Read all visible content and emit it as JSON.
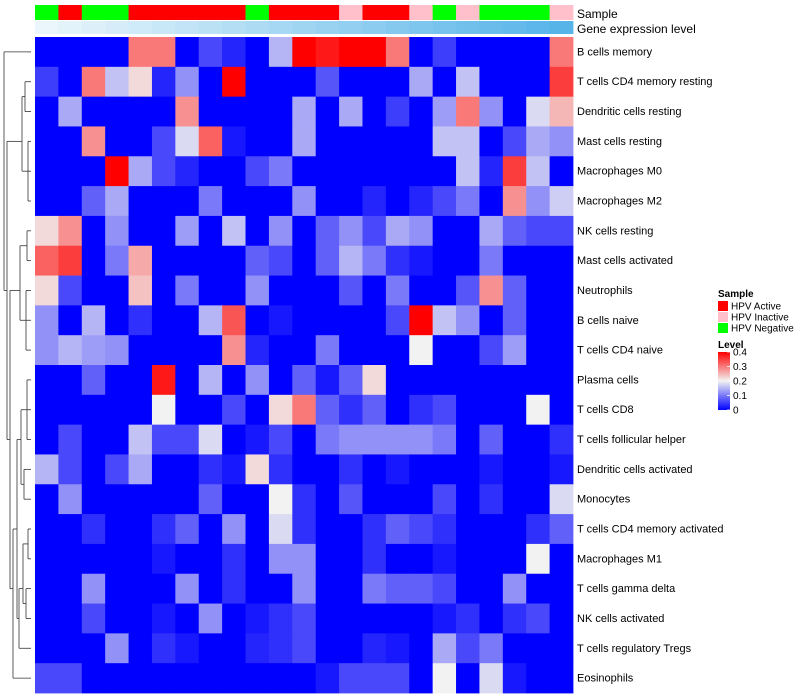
{
  "chart_data": {
    "type": "heatmap",
    "title": "",
    "annotation_rows": [
      "Sample",
      "Gene expression level"
    ],
    "rows": [
      "B cells memory",
      "T cells CD4 memory resting",
      "Dendritic cells resting",
      "Mast cells resting",
      "Macrophages M0",
      "Macrophages M2",
      "NK cells resting",
      "Mast cells activated",
      "Neutrophils",
      "B cells naive",
      "T cells CD4 naive",
      "Plasma cells",
      "T cells CD8",
      "T cells follicular helper",
      "Dendritic cells activated",
      "Monocytes",
      "T cells CD4 memory activated",
      "Macrophages M1",
      "T cells gamma delta",
      "NK cells activated",
      "T cells regulatory  Tregs",
      "Eosinophils"
    ],
    "sample_status": [
      "HPV Negative",
      "HPV Active",
      "HPV Negative",
      "HPV Negative",
      "HPV Active",
      "HPV Active",
      "HPV Active",
      "HPV Active",
      "HPV Active",
      "HPV Negative",
      "HPV Active",
      "HPV Active",
      "HPV Active",
      "HPV Inactive",
      "HPV Active",
      "HPV Active",
      "HPV Inactive",
      "HPV Negative",
      "HPV Inactive",
      "HPV Negative",
      "HPV Negative",
      "HPV Negative",
      "HPV Inactive"
    ],
    "gene_expression_level": [
      0,
      0.02,
      0.04,
      0.06,
      0.08,
      0.1,
      0.12,
      0.14,
      0.16,
      0.18,
      0.2,
      0.22,
      0.24,
      0.26,
      0.28,
      0.3,
      0.32,
      0.34,
      0.36,
      0.38,
      0.4,
      0.42,
      0.44
    ],
    "values": [
      [
        0,
        0,
        0,
        0,
        0.3,
        0.3,
        0,
        0.06,
        0.03,
        0,
        0.15,
        0.4,
        0.38,
        0.4,
        0.4,
        0.3,
        0,
        0.05,
        0,
        0,
        0,
        0,
        0.3
      ],
      [
        0.05,
        0,
        0.3,
        0.16,
        0.22,
        0.03,
        0.12,
        0,
        0.4,
        0,
        0,
        0,
        0.07,
        0,
        0,
        0,
        0.14,
        0,
        0.16,
        0,
        0,
        0,
        0.35
      ],
      [
        0,
        0.14,
        0,
        0,
        0,
        0,
        0.28,
        0,
        0,
        0,
        0,
        0.14,
        0,
        0.14,
        0,
        0.05,
        0,
        0.13,
        0.3,
        0.12,
        0,
        0.18,
        0.25
      ],
      [
        0,
        0,
        0.28,
        0,
        0,
        0.06,
        0.18,
        0.32,
        0.02,
        0,
        0,
        0.14,
        0,
        0,
        0,
        0,
        0,
        0.16,
        0.16,
        0,
        0.06,
        0.14,
        0.12
      ],
      [
        0,
        0,
        0,
        0.4,
        0.14,
        0.06,
        0.03,
        0,
        0,
        0.06,
        0.1,
        0,
        0,
        0,
        0,
        0,
        0,
        0,
        0.16,
        0.03,
        0.35,
        0.16,
        0
      ],
      [
        0,
        0,
        0.08,
        0.14,
        0,
        0,
        0,
        0.1,
        0,
        0,
        0,
        0.12,
        0,
        0,
        0.03,
        0,
        0.03,
        0.06,
        0.1,
        0,
        0.28,
        0.12,
        0.17
      ],
      [
        0.22,
        0.28,
        0,
        0.12,
        0,
        0,
        0.13,
        0,
        0.16,
        0,
        0.12,
        0,
        0.08,
        0.12,
        0.06,
        0.14,
        0.12,
        0,
        0,
        0.14,
        0.08,
        0.06,
        0.06
      ],
      [
        0.32,
        0.35,
        0,
        0.1,
        0.26,
        0,
        0,
        0,
        0,
        0.08,
        0.06,
        0,
        0.08,
        0.15,
        0.1,
        0.04,
        0.02,
        0,
        0,
        0.1,
        0,
        0,
        0
      ],
      [
        0.22,
        0.06,
        0,
        0,
        0.24,
        0,
        0.1,
        0,
        0,
        0.12,
        0,
        0,
        0,
        0.07,
        0,
        0.1,
        0,
        0,
        0.07,
        0.28,
        0.08,
        0,
        0
      ],
      [
        0.12,
        0,
        0.15,
        0,
        0.04,
        0,
        0,
        0.15,
        0.33,
        0,
        0.02,
        0,
        0,
        0,
        0,
        0.06,
        0.4,
        0.16,
        0.12,
        0,
        0.08,
        0,
        0
      ],
      [
        0.12,
        0.15,
        0.13,
        0.12,
        0,
        0,
        0,
        0,
        0.28,
        0.03,
        0,
        0,
        0.1,
        0,
        0,
        0,
        0.2,
        0,
        0,
        0.06,
        0.13,
        0,
        0
      ],
      [
        0,
        0,
        0.08,
        0,
        0,
        0.38,
        0,
        0.15,
        0,
        0.12,
        0,
        0.08,
        0.02,
        0.08,
        0.22,
        0,
        0,
        0,
        0,
        0,
        0,
        0,
        0
      ],
      [
        0,
        0,
        0,
        0,
        0,
        0.2,
        0,
        0,
        0.06,
        0,
        0.22,
        0.3,
        0.08,
        0.04,
        0.08,
        0,
        0.04,
        0.06,
        0,
        0,
        0,
        0.2,
        0
      ],
      [
        0,
        0.06,
        0,
        0,
        0.16,
        0.06,
        0.06,
        0.18,
        0,
        0.02,
        0.06,
        0,
        0.1,
        0.12,
        0.12,
        0.12,
        0.12,
        0.1,
        0,
        0.08,
        0,
        0,
        0.04
      ],
      [
        0.15,
        0.06,
        0,
        0.06,
        0.14,
        0,
        0,
        0.04,
        0.02,
        0.22,
        0.04,
        0,
        0,
        0.04,
        0,
        0.02,
        0,
        0,
        0,
        0.02,
        0,
        0,
        0.02
      ],
      [
        0,
        0.12,
        0,
        0,
        0,
        0,
        0,
        0.08,
        0,
        0,
        0.2,
        0.04,
        0,
        0.07,
        0,
        0,
        0,
        0.06,
        0,
        0.04,
        0,
        0,
        0.18
      ],
      [
        0,
        0,
        0.04,
        0,
        0,
        0.04,
        0.08,
        0,
        0.12,
        0,
        0.18,
        0.04,
        0,
        0,
        0.04,
        0.08,
        0.06,
        0.04,
        0,
        0,
        0,
        0.04,
        0.08
      ],
      [
        0,
        0,
        0,
        0,
        0,
        0.02,
        0,
        0,
        0.04,
        0,
        0.12,
        0.12,
        0,
        0,
        0.04,
        0,
        0,
        0.02,
        0,
        0,
        0,
        0.2,
        0
      ],
      [
        0,
        0,
        0.12,
        0,
        0,
        0,
        0.12,
        0,
        0.04,
        0,
        0,
        0.12,
        0,
        0,
        0.1,
        0.08,
        0.08,
        0.06,
        0,
        0,
        0.12,
        0,
        0
      ],
      [
        0,
        0,
        0.06,
        0,
        0,
        0.02,
        0,
        0.12,
        0,
        0.02,
        0.04,
        0.06,
        0,
        0,
        0,
        0,
        0,
        0.02,
        0.04,
        0,
        0.04,
        0.06,
        0
      ],
      [
        0,
        0,
        0,
        0.12,
        0,
        0.04,
        0.02,
        0,
        0,
        0.03,
        0.04,
        0.06,
        0,
        0,
        0.03,
        0.02,
        0,
        0.14,
        0.06,
        0.1,
        0,
        0,
        0
      ],
      [
        0.06,
        0.06,
        0,
        0,
        0,
        0,
        0,
        0,
        0,
        0,
        0,
        0,
        0.02,
        0.06,
        0.06,
        0.06,
        0,
        0.2,
        0,
        0.18,
        0.02,
        0,
        0
      ]
    ],
    "legend": {
      "sample_title": "Sample",
      "sample_entries": [
        {
          "label": "HPV Active",
          "color": "#ff0000"
        },
        {
          "label": "HPV Inactive",
          "color": "#ffc0cb"
        },
        {
          "label": "HPV Negative",
          "color": "#00ff00"
        }
      ],
      "level_title": "Level",
      "level_ticks": [
        "0.4",
        "0.3",
        "0.2",
        "0.1",
        "0"
      ],
      "level_tick_values": [
        0.4,
        0.3,
        0.2,
        0.1,
        0
      ],
      "position": "right"
    },
    "color_scale": {
      "min": 0,
      "mid": 0.2,
      "max": 0.4,
      "low": "#0000ff",
      "midcolor": "#f2f2f2",
      "high": "#ff0000"
    },
    "expression_scale": {
      "low": "#eaf6fb",
      "high": "#56b4e9"
    }
  }
}
